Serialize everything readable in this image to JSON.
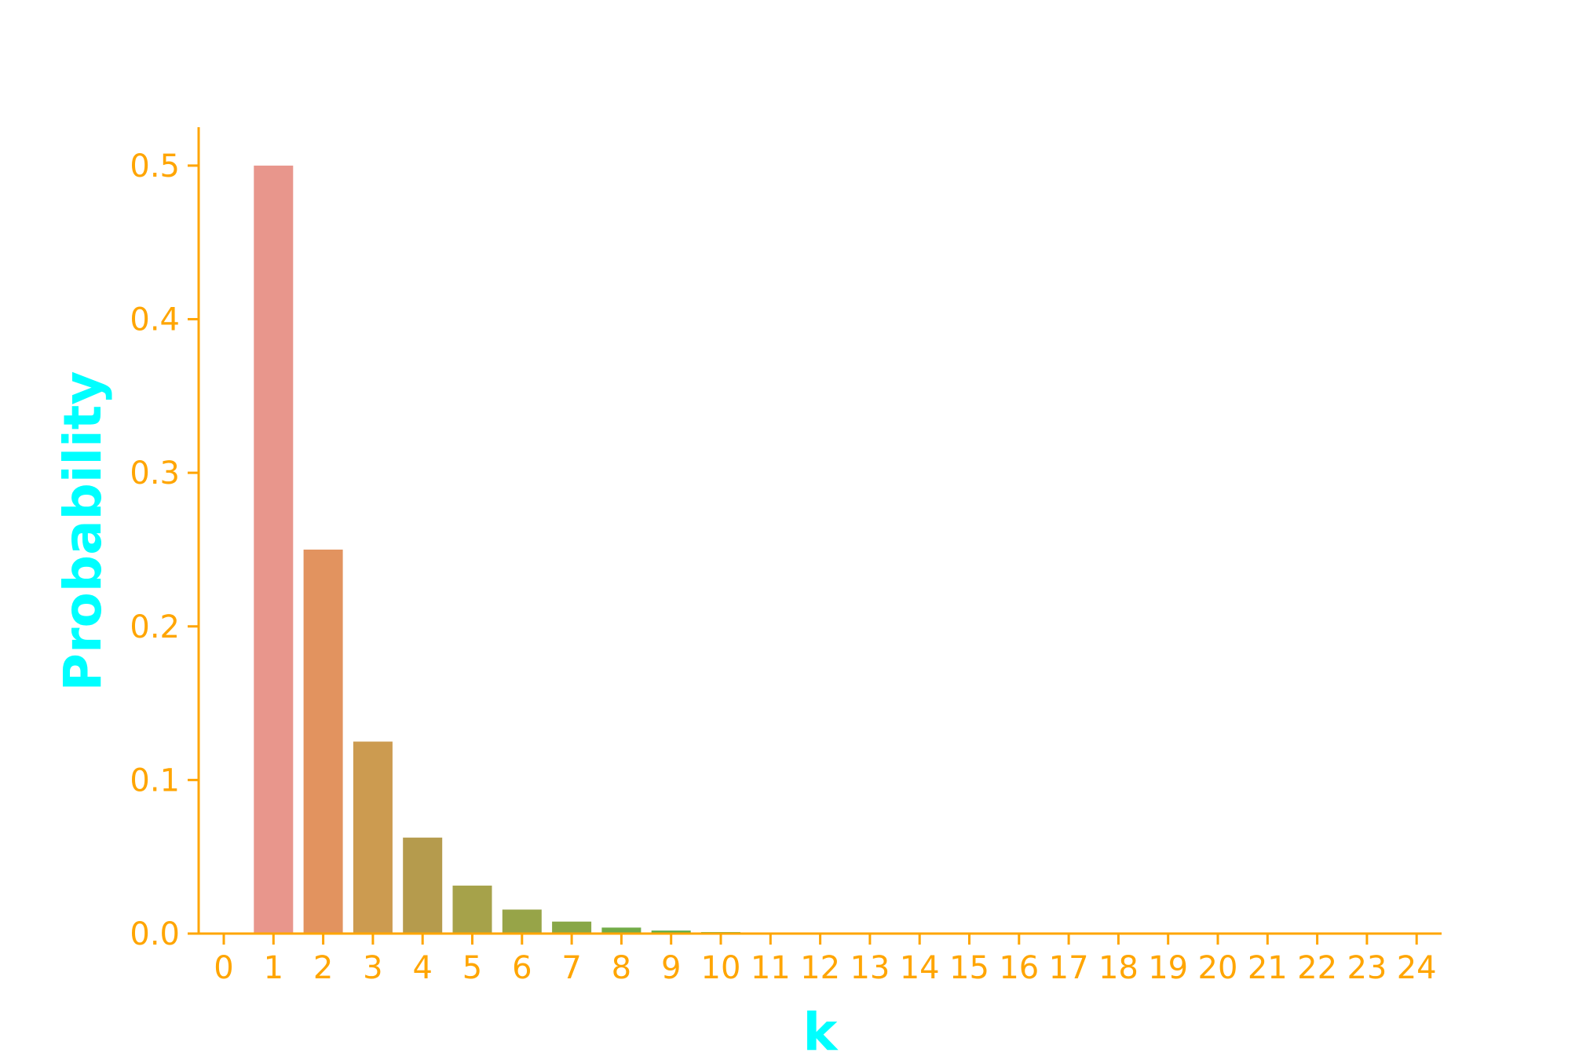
{
  "chart_data": {
    "type": "bar",
    "title": "",
    "xlabel": "k",
    "ylabel": "Probability",
    "categories": [
      "0",
      "1",
      "2",
      "3",
      "4",
      "5",
      "6",
      "7",
      "8",
      "9",
      "10",
      "11",
      "12",
      "13",
      "14",
      "15",
      "16",
      "17",
      "18",
      "19",
      "20",
      "21",
      "22",
      "23",
      "24"
    ],
    "values": [
      0,
      0.5,
      0.25,
      0.125,
      0.0625,
      0.03125,
      0.015625,
      0.0078125,
      0.00390625,
      0.001953125,
      0.0009765625,
      0.00048828125,
      0.000244140625,
      0.0001220703125,
      6.103515625e-05,
      3.0517578125e-05,
      1.52587890625e-05,
      7.62939453125e-06,
      3.814697265625e-06,
      1.9073486328125e-06,
      9.5367431640625e-07,
      4.76837158203125e-07,
      2.384185791015625e-07,
      1.1920928955078125e-07,
      5.960464477539063e-08
    ],
    "ylim": [
      0,
      0.525
    ],
    "yticks": [
      0.0,
      0.1,
      0.2,
      0.3,
      0.4,
      0.5
    ],
    "ytick_labels": [
      "0.0",
      "0.1",
      "0.2",
      "0.3",
      "0.4",
      "0.5"
    ],
    "grid": false,
    "legend": "none",
    "bar_colors": [
      "#e8968c",
      "#e8968c",
      "#e2935f",
      "#cc9b50",
      "#b59b4d",
      "#a6a24a",
      "#97a448",
      "#88a747",
      "#72ab48",
      "#5eae4a",
      "#4cb14b",
      "#3fb250",
      "#3eb25b",
      "#3db165",
      "#3db070",
      "#3eaf7b",
      "#3fae87",
      "#40ad93",
      "#41ab9e",
      "#42a9aa",
      "#43a7b6",
      "#45a4c2",
      "#47a1cd",
      "#4a9dd8",
      "#4e99e2"
    ],
    "colors": {
      "axis": "#ffa500",
      "tick_text": "#ffa500",
      "axis_label": "#00ffff"
    }
  }
}
